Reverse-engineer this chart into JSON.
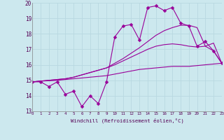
{
  "xlabel": "Windchill (Refroidissement éolien,°C)",
  "bg_color": "#cce8ee",
  "line_color": "#990099",
  "grid_color": "#b8d8e0",
  "xmin": 0,
  "xmax": 23,
  "ymin": 13,
  "ymax": 20,
  "series": [
    {
      "x": [
        0,
        1,
        2,
        3,
        4,
        5,
        6,
        7,
        8,
        9,
        10,
        11,
        12,
        13,
        14,
        15,
        16,
        17,
        18,
        19,
        20,
        21,
        22,
        23
      ],
      "y": [
        14.9,
        14.9,
        14.6,
        14.9,
        14.1,
        14.3,
        13.3,
        14.0,
        13.5,
        14.9,
        17.8,
        18.5,
        18.6,
        17.6,
        19.7,
        19.8,
        19.5,
        19.7,
        18.7,
        18.5,
        17.2,
        17.5,
        16.9,
        16.1
      ],
      "marker": true,
      "markersize": 2.5
    },
    {
      "x": [
        0,
        1,
        2,
        3,
        4,
        5,
        6,
        7,
        8,
        9,
        10,
        11,
        12,
        13,
        14,
        15,
        16,
        17,
        18,
        19,
        20,
        21,
        22,
        23
      ],
      "y": [
        14.9,
        14.95,
        14.97,
        15.0,
        15.05,
        15.1,
        15.15,
        15.2,
        15.25,
        15.3,
        15.4,
        15.5,
        15.6,
        15.7,
        15.75,
        15.8,
        15.85,
        15.9,
        15.9,
        15.9,
        15.95,
        16.0,
        16.05,
        16.1
      ],
      "marker": false,
      "markersize": 0
    },
    {
      "x": [
        0,
        1,
        2,
        3,
        4,
        5,
        6,
        7,
        8,
        9,
        10,
        11,
        12,
        13,
        14,
        15,
        16,
        17,
        18,
        19,
        20,
        21,
        22,
        23
      ],
      "y": [
        14.9,
        14.95,
        15.0,
        15.05,
        15.1,
        15.2,
        15.35,
        15.5,
        15.65,
        15.8,
        16.0,
        16.25,
        16.5,
        16.75,
        17.0,
        17.2,
        17.3,
        17.35,
        17.3,
        17.2,
        17.15,
        17.2,
        17.4,
        16.1
      ],
      "marker": false,
      "markersize": 0
    },
    {
      "x": [
        0,
        1,
        2,
        3,
        4,
        5,
        6,
        7,
        8,
        9,
        10,
        11,
        12,
        13,
        14,
        15,
        16,
        17,
        18,
        19,
        20,
        21,
        22,
        23
      ],
      "y": [
        14.9,
        14.95,
        15.0,
        15.05,
        15.1,
        15.2,
        15.35,
        15.5,
        15.65,
        15.8,
        16.1,
        16.4,
        16.75,
        17.1,
        17.5,
        17.9,
        18.2,
        18.4,
        18.55,
        18.55,
        18.4,
        17.2,
        16.9,
        16.1
      ],
      "marker": false,
      "markersize": 0
    }
  ]
}
